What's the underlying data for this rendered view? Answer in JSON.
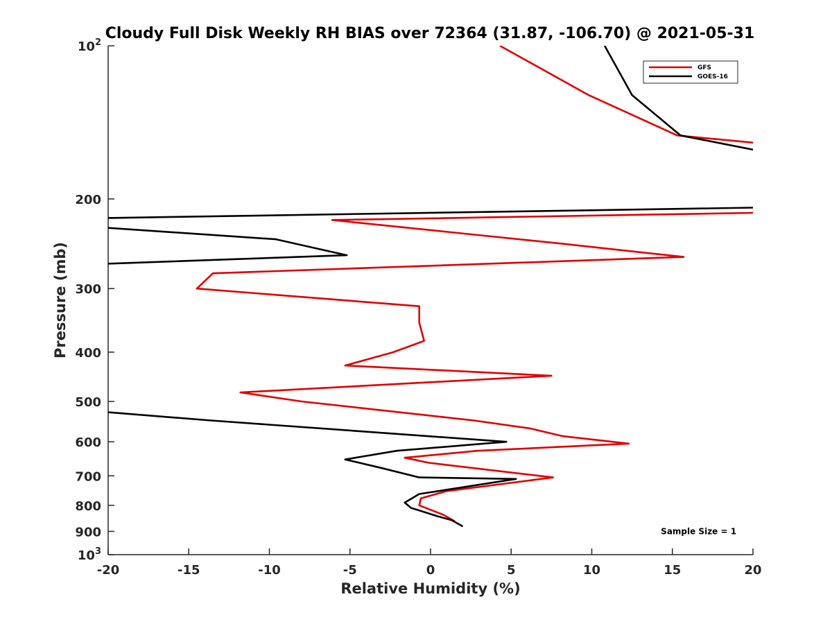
{
  "chart_data": {
    "type": "line",
    "title": "Cloudy Full Disk Weekly RH BIAS over 72364 (31.87, -106.70) @ 2021-05-31",
    "xlabel": "Relative Humidity (%)",
    "ylabel": "Pressure (mb)",
    "xlim": [
      -20,
      20
    ],
    "ylim": [
      100,
      1000
    ],
    "y_scale": "log",
    "y_reversed": true,
    "grid": false,
    "legend_position": "top-right",
    "x_ticks": [
      "-20",
      "-15",
      "-10",
      "-5",
      "0",
      "5",
      "10",
      "15",
      "20"
    ],
    "y_ticks": [
      {
        "value": 100,
        "base": "10",
        "exp": "2"
      },
      {
        "value": 200,
        "label": "200"
      },
      {
        "value": 300,
        "label": "300"
      },
      {
        "value": 400,
        "label": "400"
      },
      {
        "value": 500,
        "label": "500"
      },
      {
        "value": 600,
        "label": "600"
      },
      {
        "value": 700,
        "label": "700"
      },
      {
        "value": 800,
        "label": "800"
      },
      {
        "value": 900,
        "label": "900"
      },
      {
        "value": 1000,
        "base": "10",
        "exp": "3"
      }
    ],
    "series": [
      {
        "name": "GFS",
        "color": "#e00000",
        "points": [
          [
            4.3,
            100
          ],
          [
            9.8,
            125
          ],
          [
            15.3,
            150
          ],
          [
            20,
            155
          ],
          [
            null,
            null
          ],
          [
            20,
            213
          ],
          [
            -6.1,
            220
          ],
          [
            8.2,
            245
          ],
          [
            15.7,
            260
          ],
          [
            -13.5,
            280
          ],
          [
            -14.5,
            300
          ],
          [
            -0.7,
            325
          ],
          [
            -0.7,
            350
          ],
          [
            -0.4,
            380
          ],
          [
            -2.3,
            400
          ],
          [
            -5.3,
            425
          ],
          [
            7.5,
            445
          ],
          [
            -11.8,
            480
          ],
          [
            -8.0,
            500
          ],
          [
            2.7,
            545
          ],
          [
            6.2,
            565
          ],
          [
            8.2,
            585
          ],
          [
            12.3,
            605
          ],
          [
            2.9,
            625
          ],
          [
            -1.6,
            645
          ],
          [
            -0.1,
            660
          ],
          [
            7.6,
            705
          ],
          [
            1.0,
            750
          ],
          [
            -0.6,
            775
          ],
          [
            -0.7,
            800
          ],
          [
            0.8,
            835
          ],
          [
            1.5,
            860
          ]
        ]
      },
      {
        "name": "GOES-16",
        "color": "#000000",
        "points": [
          [
            10.8,
            100
          ],
          [
            12.5,
            125
          ],
          [
            15.5,
            150
          ],
          [
            20,
            160
          ],
          [
            null,
            null
          ],
          [
            20,
            208
          ],
          [
            -20,
            218
          ],
          [
            null,
            null
          ],
          [
            -20,
            228
          ],
          [
            -9.6,
            240
          ],
          [
            -5.2,
            258
          ],
          [
            -20,
            268
          ],
          [
            null,
            null
          ],
          [
            -20,
            525
          ],
          [
            -13.6,
            545
          ],
          [
            4.7,
            600
          ],
          [
            -2.1,
            625
          ],
          [
            -5.3,
            650
          ],
          [
            -3.1,
            675
          ],
          [
            -0.7,
            705
          ],
          [
            5.3,
            710
          ],
          [
            -0.7,
            760
          ],
          [
            -1.6,
            790
          ],
          [
            -1.2,
            810
          ],
          [
            -0.9,
            815
          ],
          [
            0.4,
            840
          ],
          [
            1.3,
            855
          ],
          [
            2.0,
            880
          ]
        ]
      }
    ],
    "annotations": [
      {
        "text": "Sample Size = 1",
        "x": 16.5,
        "y": 900
      }
    ]
  }
}
